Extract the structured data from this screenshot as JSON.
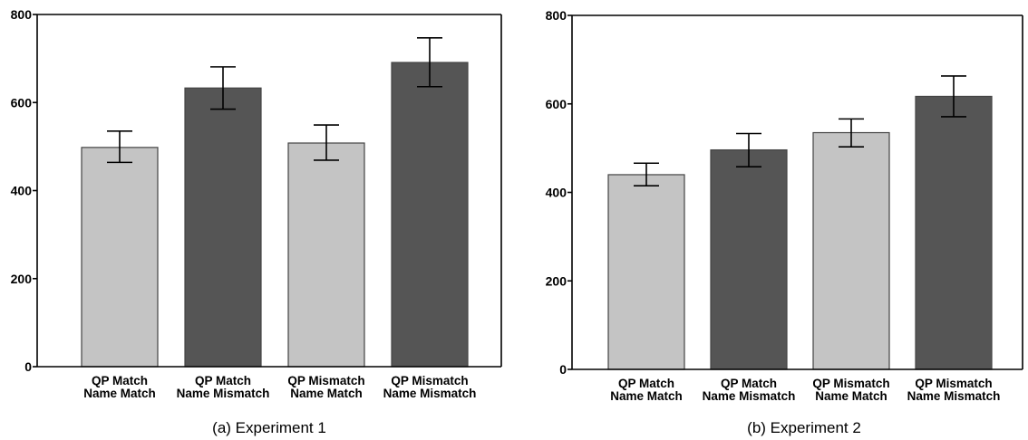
{
  "chart_data": [
    {
      "type": "bar",
      "title": "",
      "caption": "(a) Experiment 1",
      "xlabel": "",
      "ylabel": "",
      "ylim": [
        0,
        800
      ],
      "yticks": [
        "0",
        "200",
        "400",
        "600",
        "800"
      ],
      "grid": false,
      "legend": "none",
      "categories": [
        [
          "QP Match",
          "Name Match"
        ],
        [
          "QP Match",
          "Name Mismatch"
        ],
        [
          "QP Mismatch",
          "Name Match"
        ],
        [
          "QP Mismatch",
          "Name Mismatch"
        ]
      ],
      "values": [
        498,
        633,
        508,
        691
      ],
      "error": [
        [
          464,
          535
        ],
        [
          585,
          681
        ],
        [
          469,
          549
        ],
        [
          636,
          747
        ]
      ],
      "colors": [
        "#c4c4c4",
        "#555555",
        "#c4c4c4",
        "#555555"
      ]
    },
    {
      "type": "bar",
      "title": "",
      "caption": "(b) Experiment 2",
      "xlabel": "",
      "ylabel": "",
      "ylim": [
        0,
        800
      ],
      "yticks": [
        "0",
        "200",
        "400",
        "600",
        "800"
      ],
      "grid": false,
      "legend": "none",
      "categories": [
        [
          "QP Match",
          "Name Match"
        ],
        [
          "QP Match",
          "Name Mismatch"
        ],
        [
          "QP Mismatch",
          "Name Match"
        ],
        [
          "QP Mismatch",
          "Name Mismatch"
        ]
      ],
      "values": [
        440,
        496,
        535,
        617
      ],
      "error": [
        [
          415,
          466
        ],
        [
          458,
          533
        ],
        [
          503,
          566
        ],
        [
          571,
          663
        ]
      ],
      "colors": [
        "#c4c4c4",
        "#555555",
        "#c4c4c4",
        "#555555"
      ]
    }
  ]
}
